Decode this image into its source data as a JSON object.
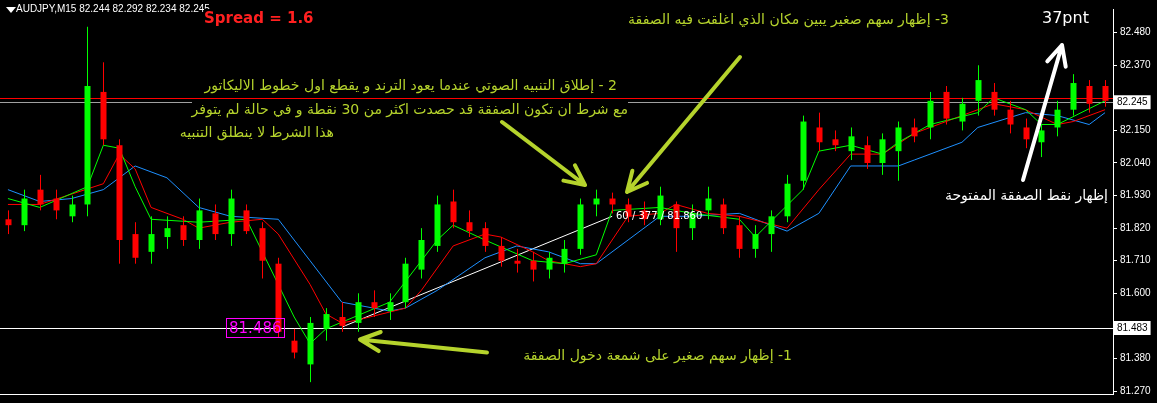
{
  "chart_data": {
    "type": "candlestick",
    "title": "AUDJPY,M15  82.244 82.292 82.234 82.245",
    "categories": [
      null,
      null,
      null,
      null,
      null,
      null,
      null,
      null,
      null,
      null,
      null,
      null,
      null,
      null,
      null,
      null,
      null,
      null,
      null,
      null,
      null,
      null,
      null,
      null,
      null,
      null,
      null,
      null,
      null,
      null,
      null,
      null,
      null,
      null,
      null,
      null,
      null,
      null,
      null,
      null,
      null,
      null,
      null,
      null,
      null,
      null,
      null,
      null,
      null,
      null,
      null,
      null,
      null,
      null,
      null,
      null,
      null,
      null,
      null,
      null,
      null,
      null,
      null,
      null,
      null,
      null,
      null,
      null,
      null,
      null
    ],
    "ohlc": [
      [
        81.85,
        81.88,
        81.8,
        81.83
      ],
      [
        81.83,
        81.95,
        81.81,
        81.92
      ],
      [
        81.95,
        82.0,
        81.88,
        81.9
      ],
      [
        81.92,
        81.95,
        81.85,
        81.88
      ],
      [
        81.86,
        81.93,
        81.84,
        81.9
      ],
      [
        81.9,
        82.5,
        81.86,
        82.3
      ],
      [
        82.28,
        82.38,
        82.1,
        82.12
      ],
      [
        82.1,
        82.12,
        81.7,
        81.78
      ],
      [
        81.8,
        81.84,
        81.7,
        81.72
      ],
      [
        81.74,
        81.86,
        81.7,
        81.8
      ],
      [
        81.79,
        81.86,
        81.75,
        81.82
      ],
      [
        81.83,
        81.86,
        81.76,
        81.78
      ],
      [
        81.78,
        81.92,
        81.75,
        81.88
      ],
      [
        81.87,
        81.9,
        81.78,
        81.8
      ],
      [
        81.8,
        81.95,
        81.76,
        81.92
      ],
      [
        81.88,
        81.9,
        81.8,
        81.81
      ],
      [
        81.82,
        81.84,
        81.65,
        81.71
      ],
      [
        81.7,
        81.72,
        81.45,
        81.47
      ],
      [
        81.44,
        81.48,
        81.38,
        81.4
      ],
      [
        81.36,
        81.52,
        81.3,
        81.5
      ],
      [
        81.48,
        81.55,
        81.44,
        81.53
      ],
      [
        81.52,
        81.57,
        81.47,
        81.49
      ],
      [
        81.5,
        81.6,
        81.47,
        81.57
      ],
      [
        81.57,
        81.61,
        81.52,
        81.55
      ],
      [
        81.54,
        81.6,
        81.51,
        81.57
      ],
      [
        81.57,
        81.72,
        81.55,
        81.7
      ],
      [
        81.68,
        81.82,
        81.65,
        81.78
      ],
      [
        81.76,
        81.93,
        81.74,
        81.9
      ],
      [
        81.91,
        81.95,
        81.82,
        81.84
      ],
      [
        81.84,
        81.88,
        81.79,
        81.81
      ],
      [
        81.82,
        81.84,
        81.74,
        81.76
      ],
      [
        81.76,
        81.79,
        81.69,
        81.71
      ],
      [
        81.71,
        81.75,
        81.67,
        81.7
      ],
      [
        81.71,
        81.74,
        81.64,
        81.68
      ],
      [
        81.68,
        81.74,
        81.65,
        81.72
      ],
      [
        81.7,
        81.78,
        81.67,
        81.75
      ],
      [
        81.75,
        81.92,
        81.73,
        81.9
      ],
      [
        81.9,
        81.95,
        81.86,
        81.92
      ],
      [
        81.92,
        81.94,
        81.87,
        81.9
      ],
      [
        81.9,
        81.92,
        81.84,
        81.86
      ],
      [
        81.88,
        81.91,
        81.83,
        81.85
      ],
      [
        81.85,
        81.96,
        81.83,
        81.93
      ],
      [
        81.9,
        81.91,
        81.74,
        81.82
      ],
      [
        81.82,
        81.9,
        81.78,
        81.87
      ],
      [
        81.88,
        81.96,
        81.85,
        81.92
      ],
      [
        81.9,
        81.92,
        81.8,
        81.82
      ],
      [
        81.83,
        81.86,
        81.72,
        81.75
      ],
      [
        81.75,
        81.83,
        81.72,
        81.8
      ],
      [
        81.8,
        81.88,
        81.74,
        81.86
      ],
      [
        81.86,
        82.0,
        81.84,
        81.97
      ],
      [
        81.98,
        82.2,
        81.95,
        82.18
      ],
      [
        82.16,
        82.21,
        82.08,
        82.11
      ],
      [
        82.12,
        82.15,
        82.08,
        82.1
      ],
      [
        82.08,
        82.16,
        82.05,
        82.13
      ],
      [
        82.1,
        82.13,
        82.02,
        82.04
      ],
      [
        82.04,
        82.14,
        82.0,
        82.12
      ],
      [
        82.08,
        82.18,
        81.98,
        82.16
      ],
      [
        82.16,
        82.19,
        82.11,
        82.13
      ],
      [
        82.16,
        82.28,
        82.12,
        82.25
      ],
      [
        82.28,
        82.3,
        82.17,
        82.19
      ],
      [
        82.18,
        82.26,
        82.15,
        82.24
      ],
      [
        82.25,
        82.37,
        82.2,
        82.32
      ],
      [
        82.28,
        82.31,
        82.2,
        82.22
      ],
      [
        82.22,
        82.25,
        82.14,
        82.17
      ],
      [
        82.16,
        82.19,
        82.09,
        82.12
      ],
      [
        82.11,
        82.17,
        82.06,
        82.15
      ],
      [
        82.16,
        82.25,
        82.13,
        82.22
      ],
      [
        82.22,
        82.34,
        82.2,
        82.31
      ],
      [
        82.3,
        82.32,
        82.21,
        82.24
      ],
      [
        82.3,
        82.32,
        82.23,
        82.25
      ]
    ],
    "colors": [
      "#ff0000",
      "#00ff00",
      "#ff0000",
      "#ff0000",
      "#00ff00",
      "#00ff00",
      "#ff0000",
      "#ff0000",
      "#ff0000",
      "#00ff00",
      "#00ff00",
      "#ff0000",
      "#00ff00",
      "#ff0000",
      "#00ff00",
      "#ff0000",
      "#ff0000",
      "#ff0000",
      "#ff0000",
      "#00ff00",
      "#00ff00",
      "#ff0000",
      "#00ff00",
      "#ff0000",
      "#00ff00",
      "#00ff00",
      "#00ff00",
      "#00ff00",
      "#ff0000",
      "#ff0000",
      "#ff0000",
      "#ff0000",
      "#ff0000",
      "#ff0000",
      "#00ff00",
      "#00ff00",
      "#00ff00",
      "#00ff00",
      "#ff0000",
      "#ff0000",
      "#ff0000",
      "#00ff00",
      "#ff0000",
      "#00ff00",
      "#00ff00",
      "#ff0000",
      "#ff0000",
      "#00ff00",
      "#00ff00",
      "#00ff00",
      "#00ff00",
      "#ff0000",
      "#ff0000",
      "#00ff00",
      "#ff0000",
      "#00ff00",
      "#00ff00",
      "#ff0000",
      "#00ff00",
      "#ff0000",
      "#00ff00",
      "#00ff00",
      "#ff0000",
      "#ff0000",
      "#ff0000",
      "#00ff00",
      "#00ff00",
      "#00ff00",
      "#ff0000",
      "#ff0000"
    ],
    "series": [
      {
        "type": "line",
        "color": "#00ff00",
        "values": [
          81.92,
          null,
          81.89,
          null,
          null,
          81.96,
          82.1,
          82.09,
          81.96,
          81.85,
          null,
          null,
          81.84,
          null,
          null,
          81.85,
          null,
          null,
          81.52,
          81.43,
          81.48,
          null,
          null,
          null,
          81.57,
          null,
          null,
          81.78,
          81.83,
          null,
          81.78,
          null,
          null,
          81.71,
          null,
          81.7,
          null,
          81.73,
          81.88,
          null,
          null,
          81.89,
          null,
          81.87,
          null,
          null,
          81.85,
          81.79,
          null,
          null,
          81.95,
          82.08,
          null,
          82.1,
          null,
          82.07,
          82.11,
          null,
          82.17,
          null,
          null,
          82.21,
          82.26,
          null,
          82.22,
          82.17,
          82.17,
          null,
          null,
          82.25
        ]
      },
      {
        "type": "line",
        "color": "#ff0000",
        "values": [
          81.9,
          null,
          81.9,
          null,
          null,
          null,
          81.97,
          82.07,
          82.02,
          81.89,
          null,
          81.85,
          81.82,
          null,
          81.84,
          null,
          81.85,
          81.8,
          null,
          81.63,
          81.53,
          81.5,
          81.51,
          null,
          null,
          81.55,
          81.61,
          null,
          81.76,
          null,
          81.8,
          81.79,
          null,
          81.74,
          81.71,
          null,
          81.69,
          81.7,
          81.78,
          81.86,
          null,
          81.87,
          81.9,
          null,
          81.87,
          null,
          81.86,
          null,
          null,
          81.82,
          null,
          81.95,
          null,
          82.07,
          null,
          82.07,
          null,
          82.14,
          null,
          null,
          82.2,
          null,
          82.24,
          null,
          82.22,
          null,
          82.17,
          82.18,
          null,
          82.22
        ]
      },
      {
        "type": "line",
        "color": "#1e90ff",
        "values": [
          81.95,
          null,
          81.91,
          null,
          81.92,
          null,
          81.95,
          null,
          82.03,
          null,
          81.99,
          null,
          81.89,
          null,
          81.86,
          null,
          null,
          81.85,
          null,
          81.71,
          null,
          81.57,
          null,
          null,
          81.54,
          81.55,
          null,
          81.61,
          null,
          null,
          81.72,
          null,
          81.76,
          null,
          81.74,
          null,
          81.7,
          81.7,
          null,
          81.78,
          null,
          81.86,
          null,
          81.86,
          null,
          null,
          81.87,
          null,
          null,
          81.81,
          null,
          81.87,
          null,
          82.03,
          null,
          null,
          82.03,
          82.05,
          null,
          null,
          82.11,
          82.16,
          null,
          null,
          82.21,
          null,
          82.2,
          null,
          82.17,
          82.21
        ]
      },
      {
        "type": "line",
        "color": "#ffffff",
        "values": [
          null,
          null,
          null,
          null,
          null,
          null,
          null,
          null,
          null,
          null,
          null,
          null,
          null,
          null,
          null,
          null,
          null,
          null,
          null,
          null,
          null,
          81.486,
          null,
          null,
          null,
          null,
          null,
          null,
          null,
          null,
          null,
          null,
          null,
          null,
          null,
          null,
          null,
          null,
          81.86,
          null,
          null,
          null,
          null,
          null,
          null,
          null,
          null,
          null,
          null,
          null,
          null,
          null,
          null,
          null,
          null,
          null,
          null,
          null,
          null,
          null,
          null,
          null,
          null,
          null,
          null,
          null,
          null,
          null,
          null,
          null
        ]
      }
    ],
    "ylim": [
      81.26,
      82.56
    ],
    "yticks": [
      {
        "value": 82.48,
        "label": "82.480"
      },
      {
        "value": 82.37,
        "label": "82.370"
      },
      {
        "value": 82.26,
        "label": null
      },
      {
        "value": 82.15,
        "label": "82.150"
      },
      {
        "value": 82.04,
        "label": "82.040"
      },
      {
        "value": 81.93,
        "label": "81.930"
      },
      {
        "value": 81.82,
        "label": "81.820"
      },
      {
        "value": 81.71,
        "label": "81.710"
      },
      {
        "value": 81.6,
        "label": "81.600"
      },
      {
        "value": 81.38,
        "label": "81.380"
      },
      {
        "value": 81.27,
        "label": "81.270"
      }
    ],
    "tick_labels": "y",
    "grid": false,
    "legend": false,
    "ref_lines": [
      {
        "axis": "y",
        "value": 82.26,
        "color": "#ff0000"
      },
      {
        "axis": "y",
        "value": 82.245,
        "label": "82.245",
        "color": "#a0a0a0"
      },
      {
        "axis": "y",
        "value": 81.483,
        "label": "81.483",
        "color": "#ffffff"
      }
    ],
    "annotations": [
      "Spread = 1.6",
      "2 -  إطلاق التنبيه الصوتي عندما يعود الترند و يقطع اول خطوط الاليكاتور",
      "مع شرط ان تكون الصفقة قد حصدت اكثر من 30 نقطة و في حالة لم يتوفر",
      "هذا الشرط لا ينطلق التنبيه",
      "3- إظهار سهم صغير يبين مكان الذي اغلقت فيه الصفقة",
      "37pnt",
      "إظهار نقط الصفقة المفتوحة",
      "1- إظهار سهم صغير على شمعة دخول الصفقة",
      "81.486",
      "60 / 377 / 81.860"
    ]
  }
}
